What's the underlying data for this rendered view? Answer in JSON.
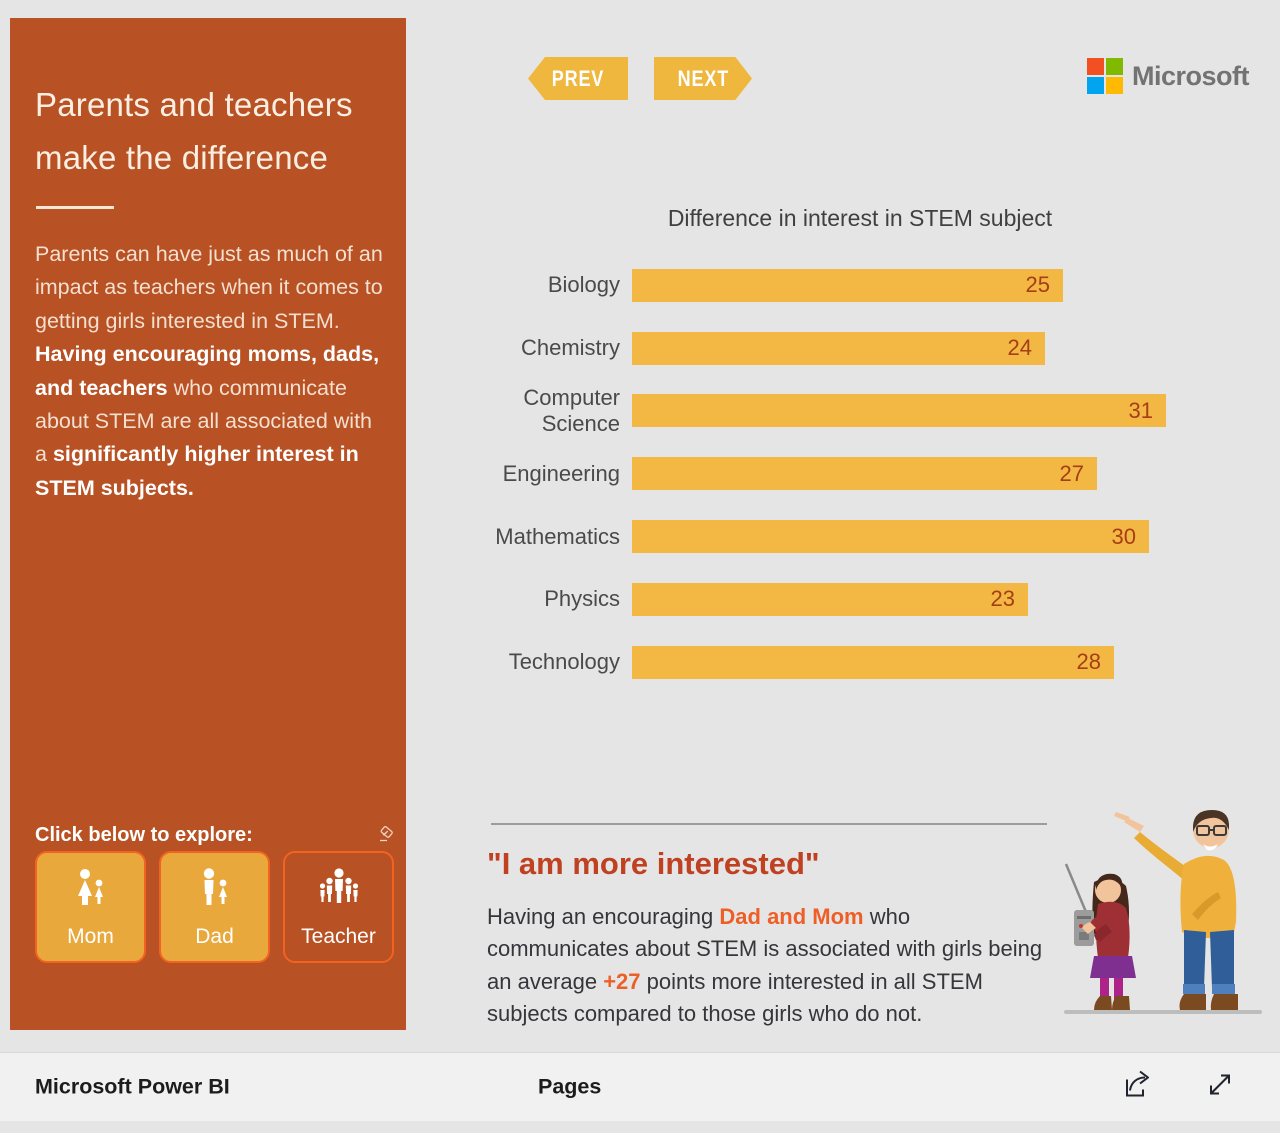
{
  "colors": {
    "sidebar_bg": "#B85123",
    "bar_fill": "#F2B843",
    "nav_button": "#EFB73E",
    "bar_value_text": "#A63E17",
    "quote_heading": "#BF4122",
    "highlight_orange": "#EE5F28",
    "button_border": "#F26322",
    "button_fill": "#E9A83C",
    "ms_red": "#F25022",
    "ms_green": "#7FBA00",
    "ms_blue": "#00A4EF",
    "ms_yellow": "#FFB900"
  },
  "nav": {
    "prev_label": "PREV",
    "next_label": "NEXT"
  },
  "brand": {
    "name": "Microsoft"
  },
  "sidebar": {
    "title_line1": "Parents and teachers",
    "title_line2": "make the difference",
    "paragraph_segments": [
      {
        "text": "Parents can have just as much of an impact as teachers when it comes to getting girls interested in STEM. ",
        "bold": false
      },
      {
        "text": "Having encouraging moms, dads, and teachers",
        "bold": true
      },
      {
        "text": " who communicate about STEM are all associated with a ",
        "bold": false
      },
      {
        "text": "significantly higher interest in STEM subjects.",
        "bold": true
      }
    ],
    "explore_label": "Click below to explore:",
    "eraser_icon": "clear-selections-eraser",
    "buttons": [
      {
        "label": "Mom",
        "selected": true,
        "icon": "mother-and-child-icon"
      },
      {
        "label": "Dad",
        "selected": true,
        "icon": "father-and-child-icon"
      },
      {
        "label": "Teacher",
        "selected": false,
        "icon": "teacher-group-icon"
      }
    ]
  },
  "chart_data": {
    "type": "bar",
    "orientation": "horizontal",
    "title": "Difference in interest in STEM subject",
    "categories": [
      "Biology",
      "Chemistry",
      "Computer Science",
      "Engineering",
      "Mathematics",
      "Physics",
      "Technology"
    ],
    "values": [
      25,
      24,
      31,
      27,
      30,
      23,
      28
    ],
    "xlim": [
      0,
      31
    ],
    "grid": false,
    "data_labels": "inside-end"
  },
  "quote": {
    "heading": "\"I am more interested\"",
    "paragraph_segments": [
      {
        "text": "Having an encouraging ",
        "bold": false
      },
      {
        "text": "Dad and Mom",
        "bold": true
      },
      {
        "text": " who communicates about STEM is associated with girls being an average ",
        "bold": false
      },
      {
        "text": "+27",
        "bold": true
      },
      {
        "text": " points more interested in all STEM subjects compared to those girls who do not.",
        "bold": false
      }
    ]
  },
  "footer": {
    "app_name": "Microsoft Power BI",
    "pages_label": "Pages",
    "icons": [
      "share-icon",
      "expand-icon"
    ]
  }
}
